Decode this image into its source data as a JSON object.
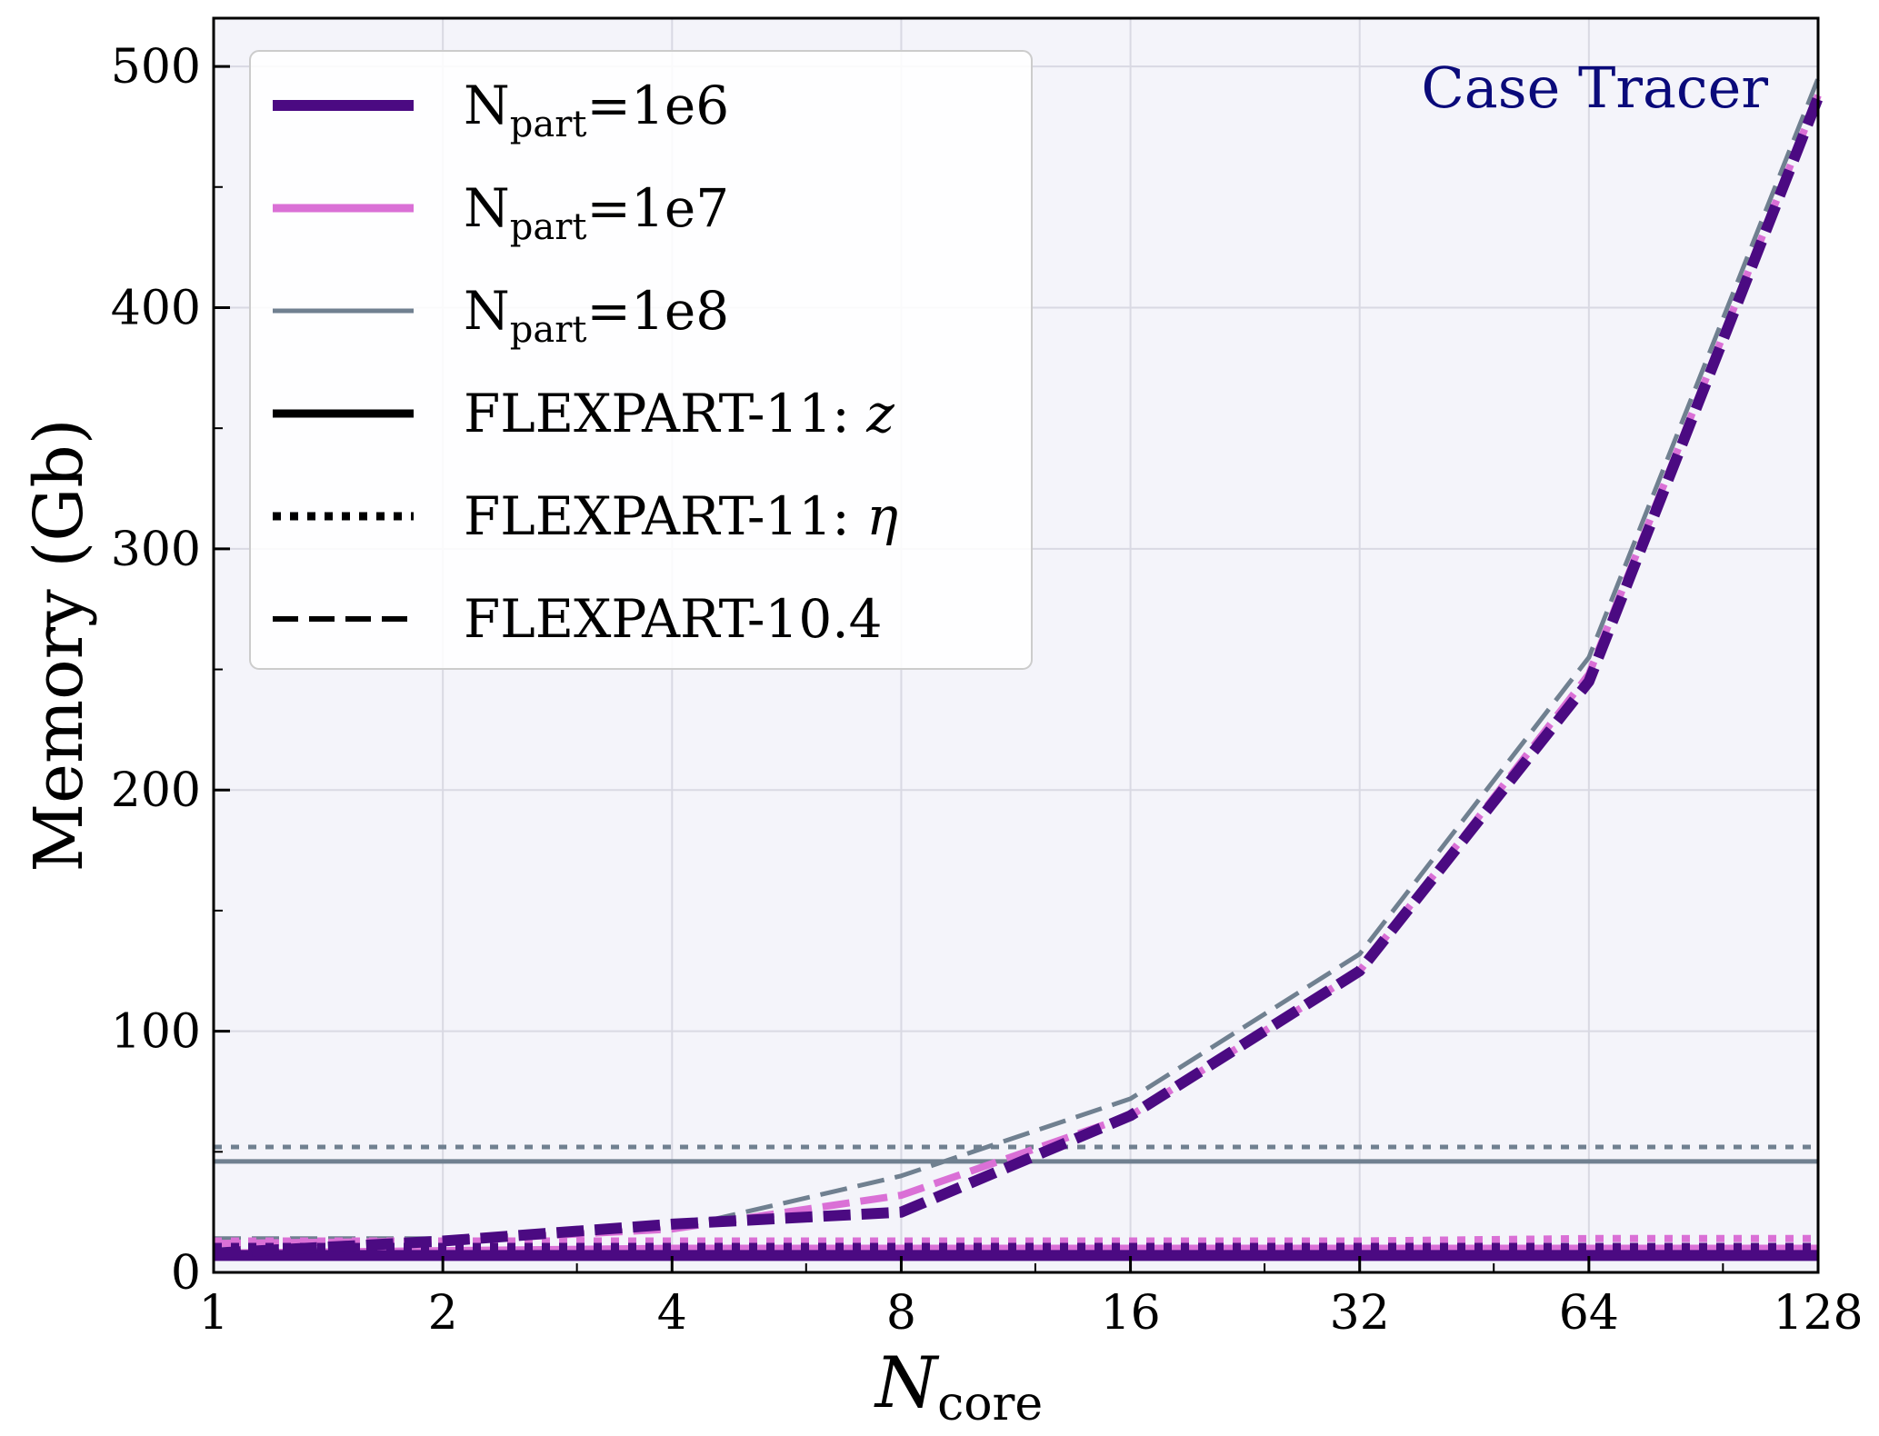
{
  "chart_data": {
    "type": "line",
    "title": "",
    "annotation": "Case Tracer",
    "xlabel": {
      "main": "N",
      "sub": "core"
    },
    "ylabel": "Memory (Gb)",
    "x_scale": "log2",
    "xlim": [
      1,
      128
    ],
    "ylim": [
      0,
      520
    ],
    "x_ticks": [
      1,
      2,
      4,
      8,
      16,
      32,
      64,
      128
    ],
    "x_tick_labels": [
      "1",
      "2",
      "4",
      "8",
      "16",
      "32",
      "64",
      "128"
    ],
    "y_ticks": [
      0,
      100,
      200,
      300,
      400,
      500
    ],
    "y_tick_labels": [
      "0",
      "100",
      "200",
      "300",
      "400",
      "500"
    ],
    "grid": true,
    "legend_position": "top-left",
    "legend": {
      "colors": [
        {
          "main": "N",
          "sub": "part",
          "suffix": "=1e6",
          "color": "#4b0a82"
        },
        {
          "main": "N",
          "sub": "part",
          "suffix": "=1e7",
          "color": "#da70d6"
        },
        {
          "main": "N",
          "sub": "part",
          "suffix": "=1e8",
          "color": "#708090"
        }
      ],
      "styles": [
        {
          "label": "FLEXPART-11: ",
          "symbol": "z",
          "dash": "solid"
        },
        {
          "label": "FLEXPART-11: ",
          "symbol": "η",
          "dash": "dotted"
        },
        {
          "label": "FLEXPART-10.4",
          "symbol": "",
          "dash": "dashed"
        }
      ]
    },
    "colors": {
      "annotation": "#0a0a7a",
      "plot_background": "#f4f4fa",
      "grid": "#d9d9e3"
    },
    "series": [
      {
        "version": "FLEXPART-11: z",
        "npart": "1e6",
        "color": "#4b0a82",
        "style": "solid",
        "x": [
          1,
          2,
          4,
          8,
          16,
          32,
          64,
          128
        ],
        "y": [
          7,
          7,
          7,
          7,
          7,
          7,
          7,
          7
        ]
      },
      {
        "version": "FLEXPART-11: z",
        "npart": "1e7",
        "color": "#da70d6",
        "style": "solid",
        "x": [
          1,
          2,
          4,
          8,
          16,
          32,
          64,
          128
        ],
        "y": [
          8,
          9,
          10,
          10,
          10,
          10,
          10,
          10
        ]
      },
      {
        "version": "FLEXPART-11: z",
        "npart": "1e8",
        "color": "#708090",
        "style": "solid",
        "x": [
          1,
          2,
          4,
          8,
          16,
          32,
          64,
          128
        ],
        "y": [
          46,
          46,
          46,
          46,
          46,
          46,
          46,
          46
        ]
      },
      {
        "version": "FLEXPART-11: η",
        "npart": "1e6",
        "color": "#4b0a82",
        "style": "dotted",
        "x": [
          1,
          2,
          4,
          8,
          16,
          32,
          64,
          128
        ],
        "y": [
          10,
          10,
          10,
          10,
          10,
          10,
          10,
          10
        ]
      },
      {
        "version": "FLEXPART-11: η",
        "npart": "1e7",
        "color": "#da70d6",
        "style": "dotted",
        "x": [
          1,
          2,
          4,
          8,
          16,
          32,
          64,
          128
        ],
        "y": [
          13,
          13,
          13,
          13,
          13,
          13,
          14,
          14
        ]
      },
      {
        "version": "FLEXPART-11: η",
        "npart": "1e8",
        "color": "#708090",
        "style": "dotted",
        "x": [
          1,
          2,
          4,
          8,
          16,
          32,
          64,
          128
        ],
        "y": [
          52,
          52,
          52,
          52,
          52,
          52,
          52,
          52
        ]
      },
      {
        "version": "FLEXPART-10.4",
        "npart": "1e6",
        "color": "#4b0a82",
        "style": "dashed",
        "x": [
          1,
          2,
          4,
          8,
          16,
          32,
          64,
          128
        ],
        "y": [
          8,
          13,
          20,
          25,
          65,
          125,
          245,
          487
        ]
      },
      {
        "version": "FLEXPART-10.4",
        "npart": "1e7",
        "color": "#da70d6",
        "style": "dashed",
        "x": [
          1,
          2,
          4,
          8,
          16,
          32,
          64,
          128
        ],
        "y": [
          12,
          13,
          18,
          32,
          65,
          125,
          248,
          488
        ]
      },
      {
        "version": "FLEXPART-10.4",
        "npart": "1e8",
        "color": "#708090",
        "style": "dashed",
        "x": [
          1,
          2,
          4,
          8,
          16,
          32,
          64,
          128
        ],
        "y": [
          14,
          14,
          18,
          40,
          72,
          132,
          255,
          495
        ]
      }
    ]
  }
}
